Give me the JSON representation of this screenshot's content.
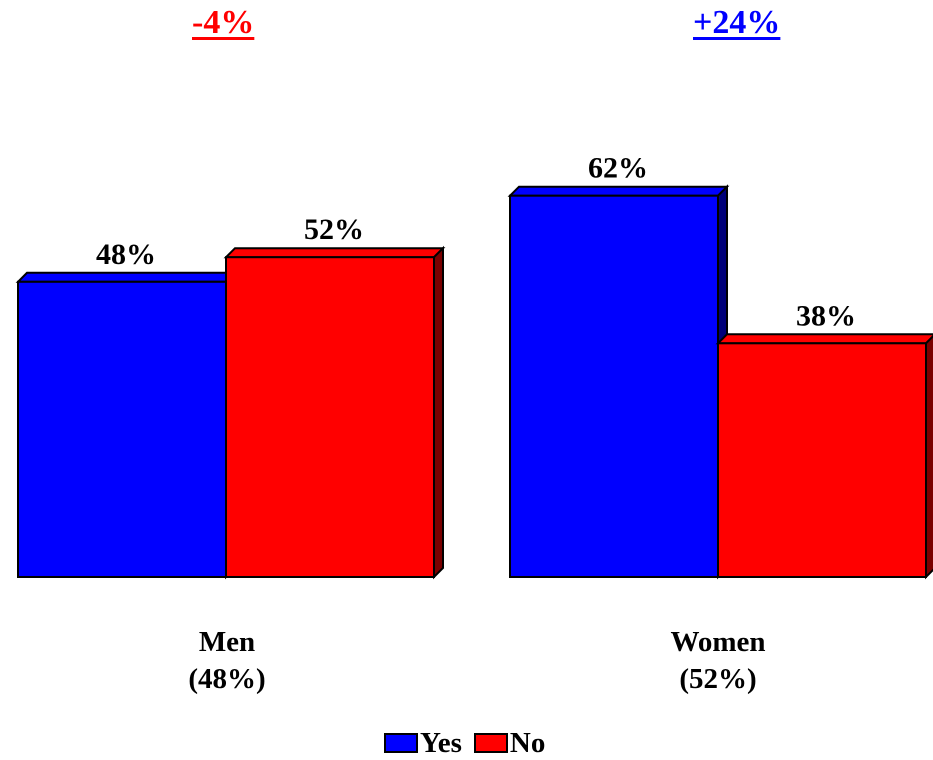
{
  "chart_data": {
    "type": "bar",
    "categories": [
      "Men",
      "Women"
    ],
    "category_sublabels": [
      "(48%)",
      "(52%)"
    ],
    "series": [
      {
        "name": "Yes",
        "values": [
          48,
          62
        ],
        "color": "#0000FF"
      },
      {
        "name": "No",
        "values": [
          52,
          38
        ],
        "color": "#FF0000"
      }
    ],
    "data_labels": [
      [
        "48%",
        "62%"
      ],
      [
        "52%",
        "38%"
      ]
    ],
    "differences": [
      {
        "label": "-4%",
        "color": "#FF0000"
      },
      {
        "label": "+24%",
        "color": "#0000FF"
      }
    ],
    "legend_position": "bottom-center",
    "grid": false,
    "ylim": [
      0,
      100
    ],
    "three_d": true
  }
}
